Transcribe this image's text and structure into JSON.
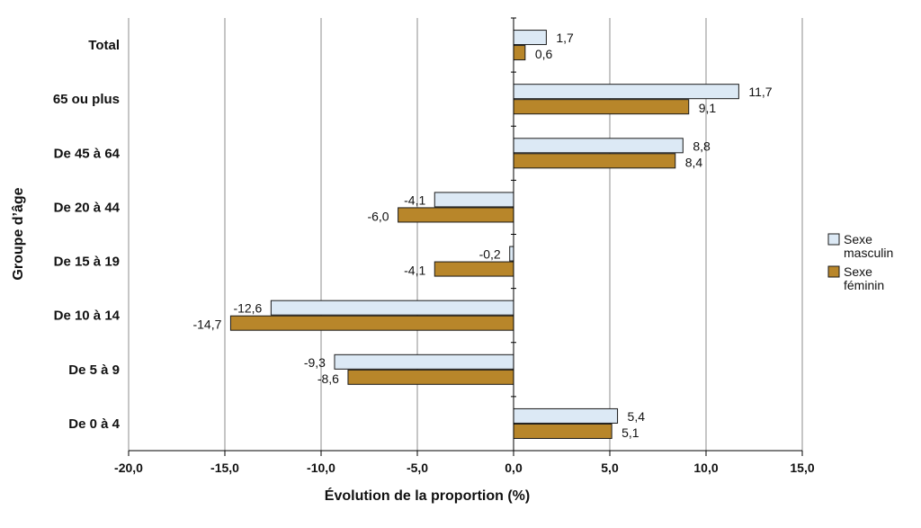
{
  "chart_data": {
    "type": "bar",
    "orientation": "horizontal",
    "categories": [
      "Total",
      "65 ou plus",
      "De 45 à 64",
      "De 20 à 44",
      "De 15 à 19",
      "De 10 à 14",
      "De 5 à 9",
      "De 0 à 4"
    ],
    "series": [
      {
        "name": "Sexe masculin",
        "color": "#DCE9F5",
        "values": [
          1.7,
          11.7,
          8.8,
          -4.1,
          -0.2,
          -12.6,
          -9.3,
          5.4
        ],
        "labels": [
          "1,7",
          "11,7",
          "8,8",
          "-4,1",
          "-0,2",
          "-12,6",
          "-9,3",
          "5,4"
        ]
      },
      {
        "name": "Sexe féminin",
        "color": "#B8862A",
        "values": [
          0.6,
          9.1,
          8.4,
          -6.0,
          -4.1,
          -14.7,
          -8.6,
          5.1
        ],
        "labels": [
          "0,6",
          "9,1",
          "8,4",
          "-6,0",
          "-4,1",
          "-14,7",
          "-8,6",
          "5,1"
        ]
      }
    ],
    "xlabel": "Évolution de la proportion (%)",
    "ylabel": "Groupe d’âge",
    "xlim": [
      -20,
      15
    ],
    "xticks": [
      -20,
      -15,
      -10,
      -5,
      0,
      5,
      10,
      15
    ],
    "xtick_labels": [
      "-20,0",
      "-15,0",
      "-10,0",
      "-5,0",
      "0,0",
      "5,0",
      "10,0",
      "15,0"
    ],
    "grid": true,
    "legend": {
      "position": "right",
      "entries": [
        {
          "lines": [
            "Sexe",
            "masculin"
          ],
          "color": "#DCE9F5"
        },
        {
          "lines": [
            "Sexe",
            "féminin"
          ],
          "color": "#B8862A"
        }
      ]
    }
  }
}
